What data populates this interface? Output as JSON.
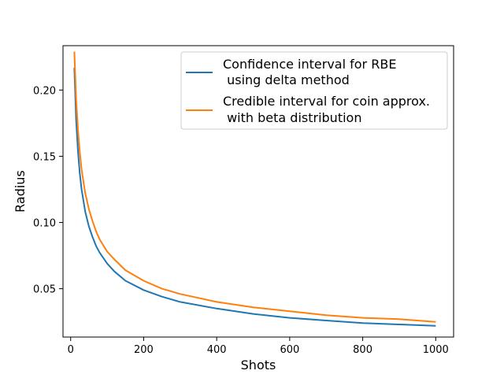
{
  "chart_data": {
    "type": "line",
    "title": "",
    "xlabel": "Shots",
    "ylabel": "Radius",
    "xlim": [
      -21,
      1049
    ],
    "ylim": [
      0.0135,
      0.2335
    ],
    "xticks": [
      0,
      200,
      400,
      600,
      800,
      1000
    ],
    "xtick_labels": [
      "0",
      "200",
      "400",
      "600",
      "800",
      "1000"
    ],
    "yticks": [
      0.05,
      0.1,
      0.15,
      0.2
    ],
    "ytick_labels": [
      "0.05",
      "0.10",
      "0.15",
      "0.20"
    ],
    "grid": false,
    "legend_position": "upper-right",
    "series": [
      {
        "name": "Confidence interval for RBE using delta method",
        "legend_lines": [
          "Confidence interval for RBE",
          " using delta method"
        ],
        "color": "#1f77b4",
        "x": [
          10,
          15,
          20,
          25,
          30,
          40,
          50,
          60,
          70,
          80,
          100,
          120,
          150,
          200,
          250,
          300,
          400,
          500,
          600,
          700,
          800,
          900,
          1000
        ],
        "y": [
          0.217,
          0.177,
          0.154,
          0.137,
          0.125,
          0.108,
          0.097,
          0.089,
          0.082,
          0.077,
          0.069,
          0.063,
          0.056,
          0.049,
          0.044,
          0.04,
          0.035,
          0.031,
          0.028,
          0.026,
          0.024,
          0.023,
          0.022
        ]
      },
      {
        "name": "Credible interval for coin approx. with beta distribution",
        "legend_lines": [
          "Credible interval for coin approx.",
          " with beta distribution"
        ],
        "color": "#ff7f0e",
        "x": [
          10,
          15,
          20,
          25,
          30,
          40,
          50,
          60,
          70,
          80,
          100,
          120,
          150,
          200,
          250,
          300,
          400,
          500,
          600,
          700,
          800,
          900,
          1000
        ],
        "y": [
          0.229,
          0.193,
          0.17,
          0.153,
          0.14,
          0.122,
          0.11,
          0.101,
          0.093,
          0.087,
          0.078,
          0.072,
          0.064,
          0.056,
          0.05,
          0.046,
          0.04,
          0.036,
          0.033,
          0.03,
          0.028,
          0.027,
          0.025
        ]
      }
    ]
  }
}
